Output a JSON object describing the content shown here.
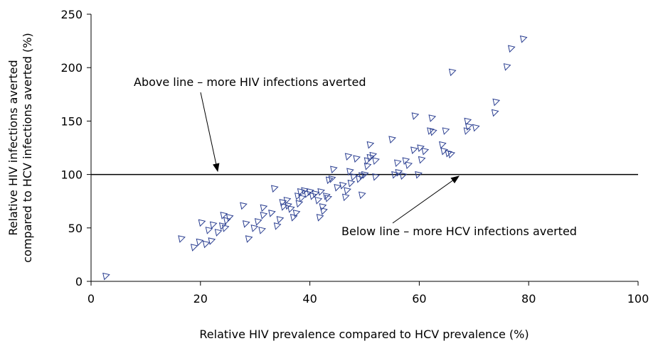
{
  "chart_data": {
    "type": "scatter",
    "x_label": "Relative HIV prevalence compared to HCV prevalence (%)",
    "y_label": [
      "Relative HIV infections averted",
      "compared to HCV infections averted (%)"
    ],
    "annotations": [
      "Above line – more HIV infections averted",
      "Below line – more HCV infections averted"
    ],
    "reference_line": 100,
    "color": "#2b3f91",
    "xlim": [
      0,
      100
    ],
    "xticks": [
      0,
      20,
      40,
      60,
      80,
      100
    ],
    "ylim": [
      0,
      250
    ],
    "yticks": [
      0,
      50,
      100,
      150,
      200,
      250
    ],
    "grid": false,
    "x": [
      2.7,
      16.5,
      18.8,
      19.8,
      20.2,
      21,
      21.5,
      22,
      22.3,
      23.2,
      24,
      24.2,
      24.8,
      25.3,
      24.5,
      27.8,
      28.3,
      28.8,
      29.8,
      30.5,
      31.2,
      31.5,
      31.5,
      33,
      33.5,
      34,
      34.5,
      35,
      35.2,
      35.8,
      36,
      36.5,
      37,
      37.5,
      37.8,
      38,
      38.3,
      38.5,
      39,
      39.5,
      40,
      40.5,
      41,
      41.5,
      41.8,
      42,
      42.3,
      42.5,
      43,
      43.3,
      43.5,
      44,
      44.3,
      45,
      46,
      46.5,
      46.8,
      47,
      47.3,
      47.5,
      48,
      48.5,
      49,
      49.5,
      49.5,
      50,
      50.5,
      50.5,
      51,
      51,
      51.5,
      52,
      55,
      55.5,
      56,
      56.2,
      57,
      57.5,
      58,
      59,
      59.2,
      59.8,
      60.2,
      61,
      62,
      62.3,
      62.5,
      64.2,
      64.5,
      64.8,
      65.3,
      65.8,
      66,
      68.7,
      68.8,
      69,
      70.3,
      73.8,
      74,
      76,
      76.8,
      79,
      60.4,
      52
    ],
    "values": [
      5,
      40,
      32,
      37,
      55,
      35,
      48,
      38,
      53,
      46,
      52,
      62,
      57,
      60,
      50,
      71,
      54,
      40,
      50,
      56,
      48,
      62,
      69,
      64,
      87,
      52,
      58,
      74,
      70,
      76,
      71,
      68,
      60,
      64,
      80,
      73,
      84,
      78,
      85,
      82,
      84,
      80,
      82,
      76,
      60,
      84,
      70,
      66,
      80,
      78,
      95,
      96,
      105,
      88,
      90,
      79,
      85,
      117,
      103,
      92,
      98,
      115,
      96,
      99,
      81,
      100,
      113,
      108,
      116,
      128,
      118,
      113,
      133,
      100,
      111,
      102,
      99,
      113,
      109,
      123,
      155,
      100,
      125,
      122,
      141,
      153,
      140,
      128,
      122,
      141,
      120,
      119,
      196,
      141,
      150,
      145,
      144,
      158,
      168,
      201,
      218,
      227,
      114,
      98
    ]
  }
}
